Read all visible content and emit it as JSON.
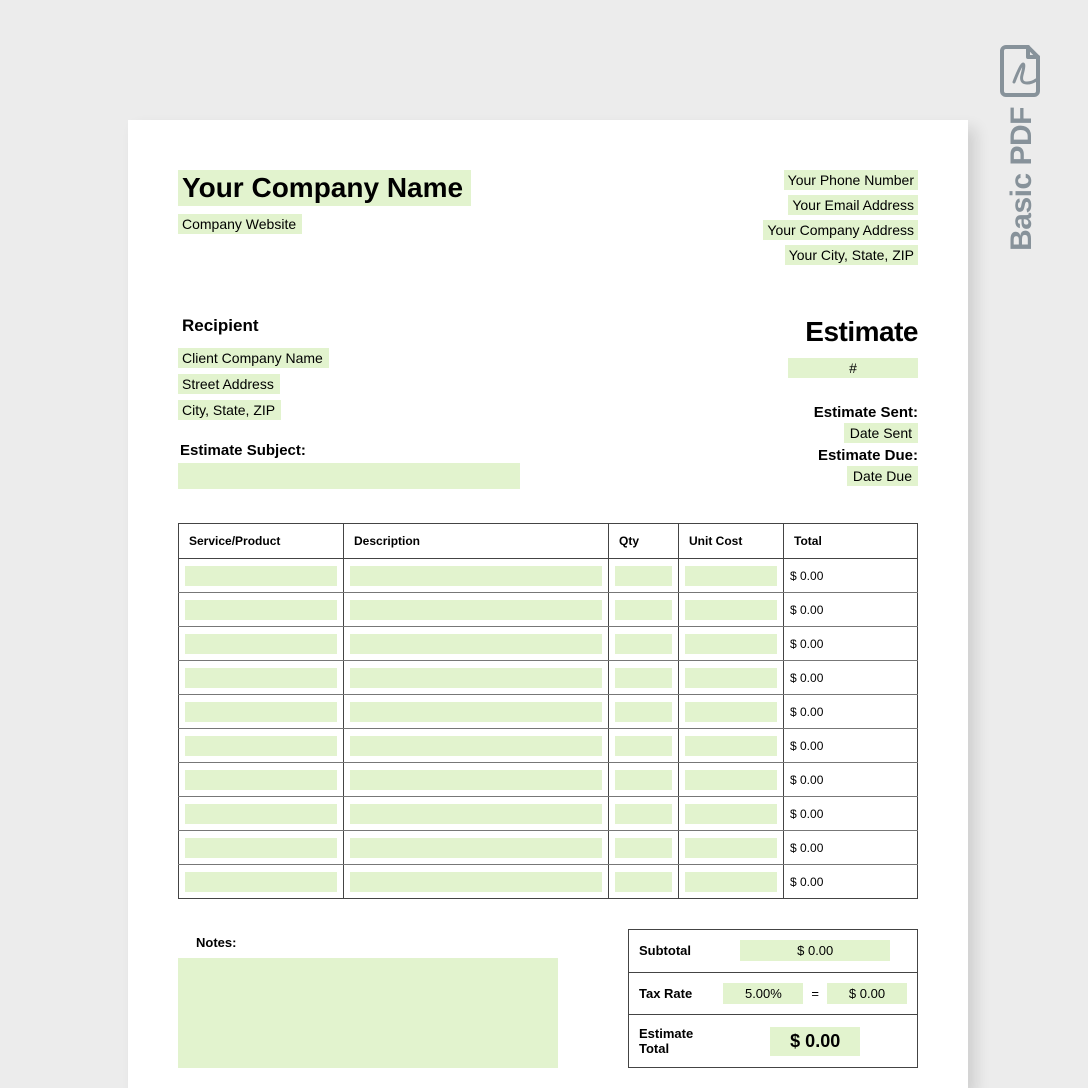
{
  "badge": {
    "label": "Basic PDF",
    "icon_color": "#87929a"
  },
  "highlight_color": "#e2f3ce",
  "page_bg": "#ffffff",
  "canvas_bg": "#ececec",
  "company": {
    "name": "Your Company Name",
    "website": "Company Website"
  },
  "contact": {
    "phone": "Your Phone Number",
    "email": "Your Email Address",
    "address": "Your Company Address",
    "city_state_zip": "Your City, State, ZIP"
  },
  "recipient": {
    "heading": "Recipient",
    "company": "Client Company Name",
    "street": "Street Address",
    "city_state_zip": "City, State, ZIP"
  },
  "subject": {
    "label": "Estimate Subject:",
    "value": ""
  },
  "estimate": {
    "title": "Estimate",
    "number_label": "#",
    "sent_label": "Estimate",
    "sent_label_suffix": "Sent:",
    "sent_value": "Date Sent",
    "due_label": "Estimate",
    "due_label_suffix": "Due:",
    "due_value": "Date Due"
  },
  "table": {
    "columns": [
      "Service/Product",
      "Description",
      "Qty",
      "Unit Cost",
      "Total"
    ],
    "row_count": 10,
    "row_total_placeholder": "$ 0.00"
  },
  "notes": {
    "label": "Notes:"
  },
  "summary": {
    "subtotal_label": "Subtotal",
    "subtotal_value": "$ 0.00",
    "tax_label": "Tax Rate",
    "tax_rate": "5.00%",
    "tax_eq": "=",
    "tax_value": "$ 0.00",
    "total_label": "Estimate Total",
    "total_value": "$ 0.00"
  }
}
